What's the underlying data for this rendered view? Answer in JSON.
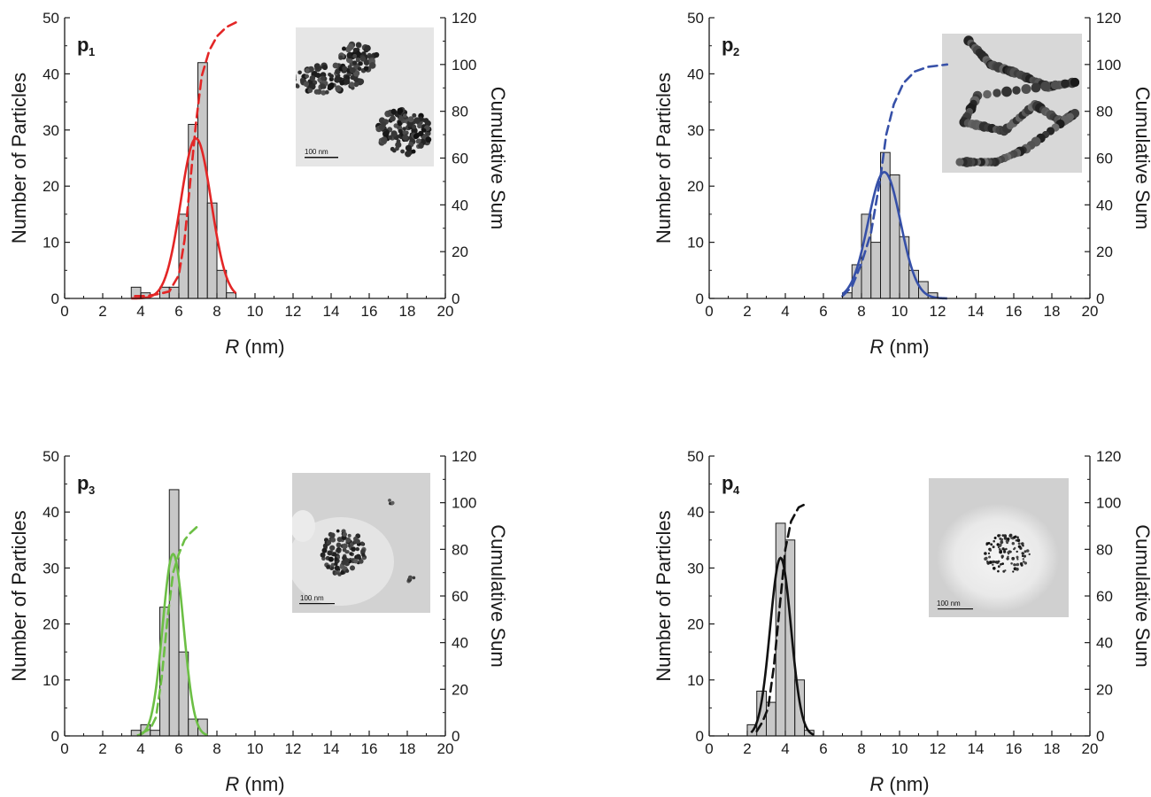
{
  "chart_data": [
    {
      "type": "bar",
      "panel_label": "p",
      "panel_sub": "1",
      "xlabel_italic": "R",
      "xlabel_unit": " (nm)",
      "ylabel": "Number of Particles",
      "y2label": "Cumulative Sum",
      "xlim": [
        0,
        20
      ],
      "ylim": [
        0,
        50
      ],
      "y2lim": [
        0,
        120
      ],
      "xticks": [
        "0",
        "2",
        "4",
        "6",
        "8",
        "10",
        "12",
        "14",
        "16",
        "18",
        "20"
      ],
      "yticks": [
        "0",
        "10",
        "20",
        "30",
        "40",
        "50"
      ],
      "y2ticks": [
        "0",
        "20",
        "40",
        "60",
        "80",
        "100",
        "120"
      ],
      "bin_width": 0.5,
      "bins": [
        {
          "x": 3.5,
          "count": 2
        },
        {
          "x": 4.0,
          "count": 1
        },
        {
          "x": 5.0,
          "count": 2
        },
        {
          "x": 5.5,
          "count": 2
        },
        {
          "x": 6.0,
          "count": 15
        },
        {
          "x": 6.5,
          "count": 31
        },
        {
          "x": 7.0,
          "count": 42
        },
        {
          "x": 7.5,
          "count": 17
        },
        {
          "x": 8.0,
          "count": 5
        },
        {
          "x": 8.5,
          "count": 1
        }
      ],
      "gaussian": {
        "mean": 6.9,
        "sd": 0.8,
        "peak": 28.5,
        "range": [
          3.5,
          9.0
        ]
      },
      "cumulative": [
        [
          3.7,
          1
        ],
        [
          4.3,
          1
        ],
        [
          5.0,
          2
        ],
        [
          5.5,
          3
        ],
        [
          6.0,
          10
        ],
        [
          6.3,
          25
        ],
        [
          6.6,
          50
        ],
        [
          6.9,
          75
        ],
        [
          7.2,
          95
        ],
        [
          7.6,
          106
        ],
        [
          8.0,
          112
        ],
        [
          8.5,
          116
        ],
        [
          9.0,
          118
        ]
      ],
      "color": "#e32626",
      "inset": {
        "scale_text": "100 nm",
        "style": "dense"
      }
    },
    {
      "type": "bar",
      "panel_label": "p",
      "panel_sub": "2",
      "xlabel_italic": "R",
      "xlabel_unit": " (nm)",
      "ylabel": "Number of Particles",
      "y2label": "Cumulative Sum",
      "xlim": [
        0,
        20
      ],
      "ylim": [
        0,
        50
      ],
      "y2lim": [
        0,
        120
      ],
      "xticks": [
        "0",
        "2",
        "4",
        "6",
        "8",
        "10",
        "12",
        "14",
        "16",
        "18",
        "20"
      ],
      "yticks": [
        "0",
        "10",
        "20",
        "30",
        "40",
        "50"
      ],
      "y2ticks": [
        "0",
        "20",
        "40",
        "60",
        "80",
        "100",
        "120"
      ],
      "bin_width": 0.5,
      "bins": [
        {
          "x": 7.0,
          "count": 1
        },
        {
          "x": 7.5,
          "count": 6
        },
        {
          "x": 8.0,
          "count": 15
        },
        {
          "x": 8.5,
          "count": 10
        },
        {
          "x": 9.0,
          "count": 26
        },
        {
          "x": 9.5,
          "count": 22
        },
        {
          "x": 10.0,
          "count": 11
        },
        {
          "x": 10.5,
          "count": 5
        },
        {
          "x": 11.0,
          "count": 3
        },
        {
          "x": 11.5,
          "count": 1
        }
      ],
      "gaussian": {
        "mean": 9.2,
        "sd": 0.85,
        "peak": 22.5,
        "range": [
          7.0,
          12.5
        ]
      },
      "cumulative": [
        [
          7.0,
          1
        ],
        [
          7.5,
          5
        ],
        [
          8.0,
          15
        ],
        [
          8.5,
          28
        ],
        [
          9.0,
          52
        ],
        [
          9.3,
          70
        ],
        [
          9.7,
          83
        ],
        [
          10.2,
          92
        ],
        [
          10.8,
          97
        ],
        [
          11.5,
          99
        ],
        [
          12.5,
          100
        ]
      ],
      "color": "#3650a8",
      "inset": {
        "scale_text": "",
        "style": "chain"
      }
    },
    {
      "type": "bar",
      "panel_label": "p",
      "panel_sub": "3",
      "xlabel_italic": "R",
      "xlabel_unit": " (nm)",
      "ylabel": "Number of Particles",
      "y2label": "Cumulative Sum",
      "xlim": [
        0,
        20
      ],
      "ylim": [
        0,
        50
      ],
      "y2lim": [
        0,
        120
      ],
      "xticks": [
        "0",
        "2",
        "4",
        "6",
        "8",
        "10",
        "12",
        "14",
        "16",
        "18",
        "20"
      ],
      "yticks": [
        "0",
        "10",
        "20",
        "30",
        "40",
        "50"
      ],
      "y2ticks": [
        "0",
        "20",
        "40",
        "60",
        "80",
        "100",
        "120"
      ],
      "bin_width": 0.5,
      "bins": [
        {
          "x": 3.5,
          "count": 1
        },
        {
          "x": 4.0,
          "count": 2
        },
        {
          "x": 4.5,
          "count": 1
        },
        {
          "x": 5.0,
          "count": 23
        },
        {
          "x": 5.5,
          "count": 44
        },
        {
          "x": 6.0,
          "count": 15
        },
        {
          "x": 6.5,
          "count": 3
        },
        {
          "x": 7.0,
          "count": 3
        }
      ],
      "gaussian": {
        "mean": 5.7,
        "sd": 0.55,
        "peak": 32.5,
        "range": [
          3.8,
          7.5
        ]
      },
      "cumulative": [
        [
          4.0,
          1
        ],
        [
          4.5,
          3
        ],
        [
          4.8,
          8
        ],
        [
          5.1,
          25
        ],
        [
          5.4,
          50
        ],
        [
          5.7,
          70
        ],
        [
          6.0,
          78
        ],
        [
          6.3,
          84
        ],
        [
          6.6,
          87
        ],
        [
          7.0,
          90
        ]
      ],
      "color": "#6cbf45",
      "inset": {
        "scale_text": "100 nm",
        "style": "cluster"
      }
    },
    {
      "type": "bar",
      "panel_label": "p",
      "panel_sub": "4",
      "xlabel_italic": "R",
      "xlabel_unit": " (nm)",
      "ylabel": "Number of Particles",
      "y2label": "Cumulative Sum",
      "xlim": [
        0,
        20
      ],
      "ylim": [
        0,
        50
      ],
      "y2lim": [
        0,
        120
      ],
      "xticks": [
        "0",
        "2",
        "4",
        "6",
        "8",
        "10",
        "12",
        "14",
        "16",
        "18",
        "20"
      ],
      "yticks": [
        "0",
        "10",
        "20",
        "30",
        "40",
        "50"
      ],
      "y2ticks": [
        "0",
        "20",
        "40",
        "60",
        "80",
        "100",
        "120"
      ],
      "bin_width": 0.5,
      "bins": [
        {
          "x": 2.0,
          "count": 2
        },
        {
          "x": 2.5,
          "count": 8
        },
        {
          "x": 3.0,
          "count": 6
        },
        {
          "x": 3.5,
          "count": 38
        },
        {
          "x": 4.0,
          "count": 35
        },
        {
          "x": 4.5,
          "count": 10
        },
        {
          "x": 5.0,
          "count": 1
        }
      ],
      "gaussian": {
        "mean": 3.75,
        "sd": 0.55,
        "peak": 31.8,
        "range": [
          2.2,
          5.5
        ]
      },
      "cumulative": [
        [
          2.5,
          2
        ],
        [
          2.8,
          6
        ],
        [
          3.1,
          12
        ],
        [
          3.4,
          30
        ],
        [
          3.7,
          55
        ],
        [
          4.0,
          80
        ],
        [
          4.3,
          92
        ],
        [
          4.7,
          98
        ],
        [
          5.2,
          100
        ]
      ],
      "color": "#111111",
      "inset": {
        "scale_text": "100 nm",
        "style": "sparse"
      }
    }
  ]
}
